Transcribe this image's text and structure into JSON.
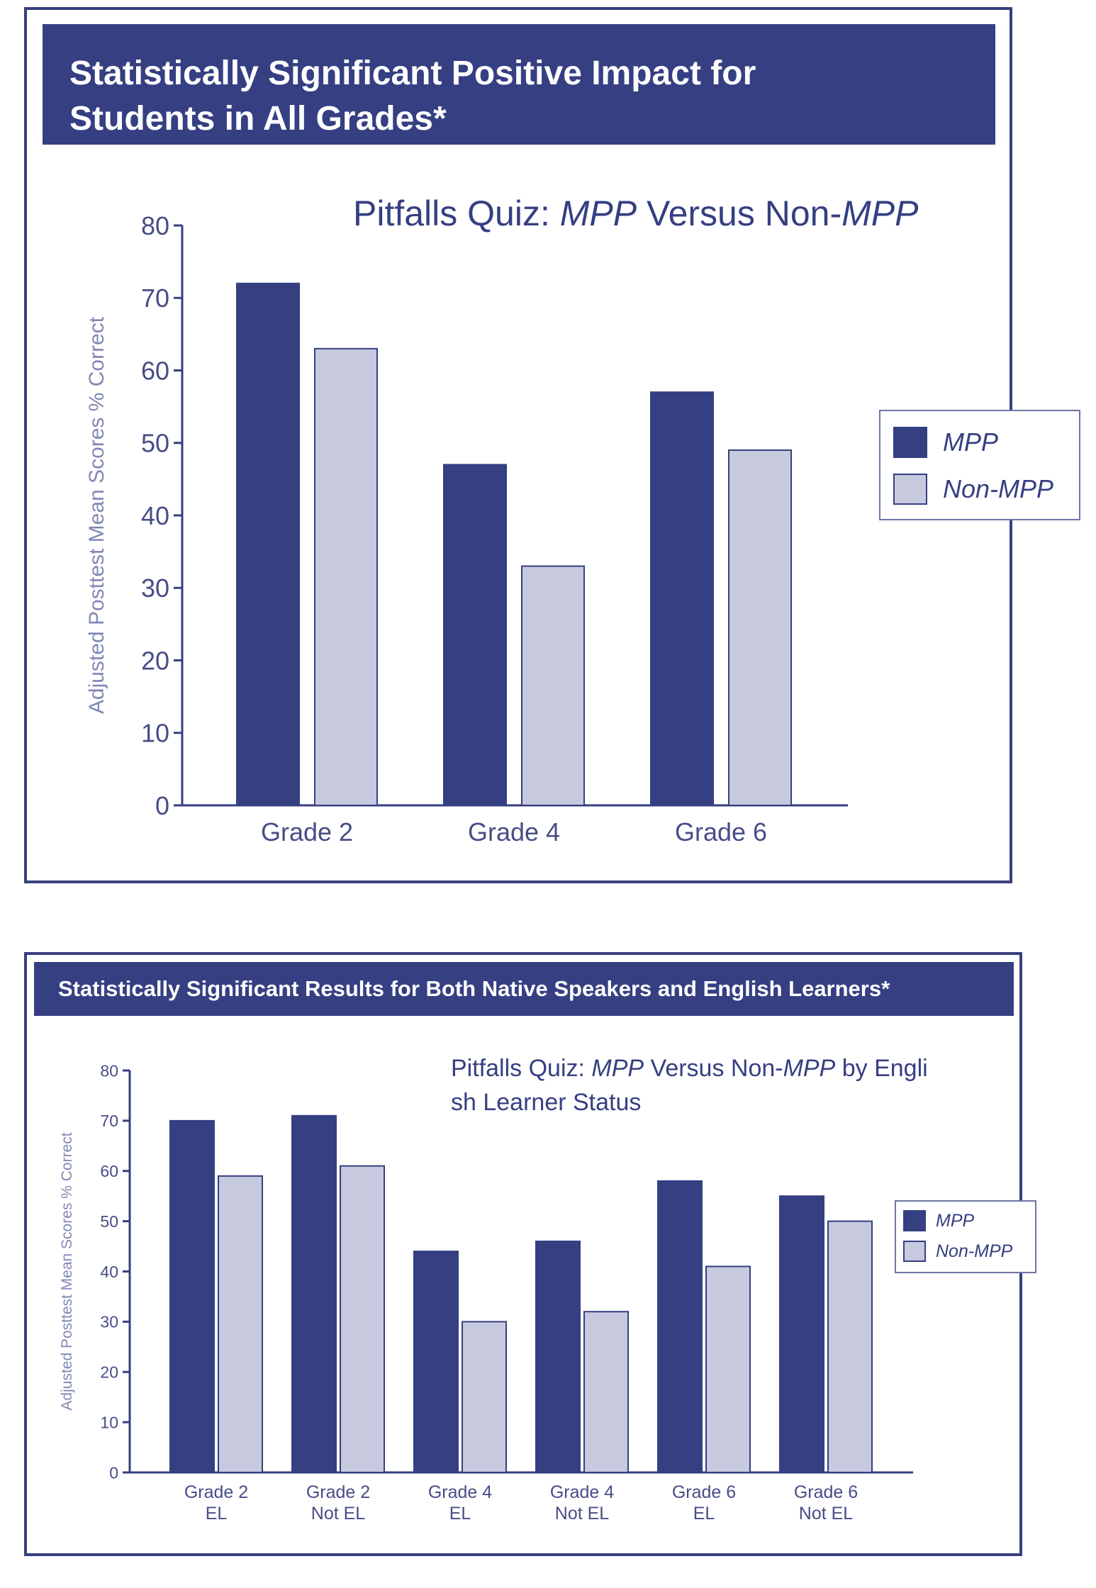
{
  "colors": {
    "mpp": "#353f82",
    "non_mpp": "#c7c9df",
    "axis": "#353f82",
    "tick_text": "#474d86",
    "axis_label": "#8087b5",
    "frame": "#37407e"
  },
  "panel1": {
    "banner": {
      "line1": "Statistically Significant Positive Impact for",
      "line2": "Students in All Grades*"
    }
  },
  "panel2": {
    "banner": "Statistically Significant Results for Both Native Speakers and English Learners*"
  },
  "legend": {
    "items": [
      {
        "label": "MPP",
        "color": "#353f82"
      },
      {
        "label": "Non-MPP",
        "color": "#c7c9df"
      }
    ]
  },
  "chart_data": [
    {
      "type": "bar",
      "title": "Pitfalls Quiz: MPP Versus Non-MPP",
      "ylabel": "Adjusted Posttest Mean Scores % Correct",
      "xlabel": "",
      "ylim": [
        0,
        80
      ],
      "yticks": [
        0,
        10,
        20,
        30,
        40,
        50,
        60,
        70,
        80
      ],
      "categories": [
        "Grade 2",
        "Grade 4",
        "Grade 6"
      ],
      "series": [
        {
          "name": "MPP",
          "values": [
            72,
            47,
            57
          ]
        },
        {
          "name": "Non-MPP",
          "values": [
            63,
            33,
            49
          ]
        }
      ],
      "legend": "right"
    },
    {
      "type": "bar",
      "title": "Pitfalls Quiz: MPP Versus Non-MPP by English Learner Status",
      "ylabel": "Adjusted Posttest Mean Scores % Correct",
      "xlabel": "",
      "ylim": [
        0,
        80
      ],
      "yticks": [
        0,
        10,
        20,
        30,
        40,
        50,
        60,
        70,
        80
      ],
      "categories": [
        "Grade 2 EL",
        "Grade 2 Not EL",
        "Grade 4 EL",
        "Grade 4 Not EL",
        "Grade 6 EL",
        "Grade 6 Not EL"
      ],
      "series": [
        {
          "name": "MPP",
          "values": [
            70,
            71,
            44,
            46,
            58,
            55
          ]
        },
        {
          "name": "Non-MPP",
          "values": [
            59,
            61,
            30,
            32,
            41,
            50
          ]
        }
      ],
      "legend": "right"
    }
  ]
}
